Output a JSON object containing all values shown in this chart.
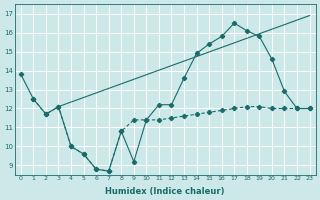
{
  "xlabel": "Humidex (Indice chaleur)",
  "background_color": "#cce8e8",
  "grid_color": "#ffffff",
  "line_color": "#1a6b6b",
  "xlim": [
    -0.5,
    23.5
  ],
  "ylim": [
    8.5,
    17.5
  ],
  "yticks": [
    9,
    10,
    11,
    12,
    13,
    14,
    15,
    16,
    17
  ],
  "xticks": [
    0,
    1,
    2,
    3,
    4,
    5,
    6,
    7,
    8,
    9,
    10,
    11,
    12,
    13,
    14,
    15,
    16,
    17,
    18,
    19,
    20,
    21,
    22,
    23
  ],
  "series1_x": [
    0,
    1,
    2,
    3,
    4,
    5,
    6,
    7,
    8,
    9,
    10,
    11,
    12,
    13,
    14,
    15,
    16,
    17,
    18,
    19,
    20,
    21,
    22,
    23
  ],
  "series1_y": [
    13.8,
    12.5,
    11.7,
    12.1,
    10.0,
    9.6,
    8.8,
    8.7,
    10.8,
    9.2,
    11.4,
    12.2,
    12.2,
    13.6,
    14.9,
    15.4,
    15.8,
    16.5,
    16.1,
    15.8,
    14.6,
    12.9,
    12.0,
    12.0
  ],
  "series2_x": [
    1,
    2,
    3,
    4,
    5,
    6,
    7,
    8,
    9,
    10,
    11,
    12,
    13,
    14,
    15,
    16,
    17,
    18,
    19,
    20,
    21,
    22,
    23
  ],
  "series2_y": [
    12.5,
    11.7,
    12.1,
    10.0,
    9.6,
    8.8,
    8.7,
    10.8,
    11.4,
    11.4,
    11.4,
    11.5,
    11.6,
    11.7,
    11.8,
    11.9,
    12.0,
    12.1,
    12.1,
    12.0,
    12.0,
    12.0,
    12.0
  ],
  "series3_x": [
    3,
    23
  ],
  "series3_y": [
    12.1,
    16.9
  ]
}
